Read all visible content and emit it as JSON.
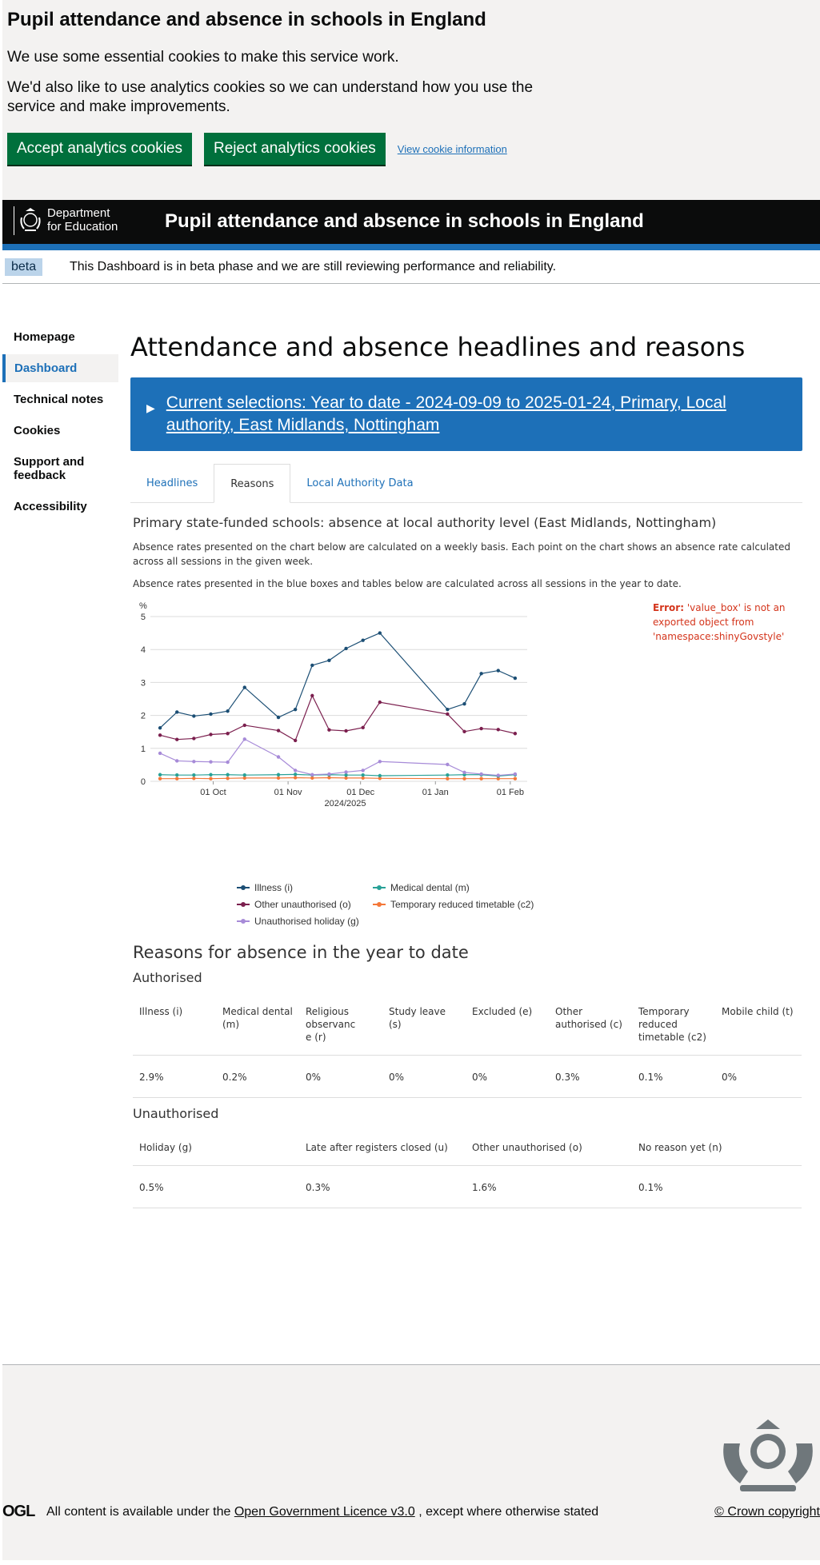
{
  "cookie": {
    "title": "Pupil attendance and absence in schools in England",
    "p1": "We use some essential cookies to make this service work.",
    "p2": "We'd also like to use analytics cookies so we can understand how you use the service and make improvements.",
    "accept": "Accept analytics cookies",
    "reject": "Reject analytics cookies",
    "view": "View cookie information"
  },
  "header": {
    "org_line1": "Department",
    "org_line2": "for Education",
    "title": "Pupil attendance and absence in schools in England"
  },
  "beta": {
    "tag": "beta",
    "text": "This Dashboard is in beta phase and we are still reviewing performance and reliability."
  },
  "sidebar": {
    "items": [
      {
        "label": "Homepage"
      },
      {
        "label": "Dashboard"
      },
      {
        "label": "Technical notes"
      },
      {
        "label": "Cookies"
      },
      {
        "label": "Support and feedback"
      },
      {
        "label": "Accessibility"
      }
    ],
    "active": "Dashboard"
  },
  "main": {
    "title": "Attendance and absence headlines and reasons",
    "selections": "Current selections: Year to date - 2024-09-09 to 2025-01-24, Primary, Local authority, East Midlands, Nottingham",
    "tabs": [
      {
        "label": "Headlines"
      },
      {
        "label": "Reasons"
      },
      {
        "label": "Local Authority Data"
      }
    ],
    "active_tab": "Reasons"
  },
  "reasons": {
    "heading": "Primary state-funded schools: absence at local authority level (East Midlands, Nottingham)",
    "note1": "Absence rates presented on the chart below are calculated on a weekly basis. Each point on the chart shows an absence rate calculated across all sessions in the given week.",
    "note2": "Absence rates presented in the blue boxes and tables below are calculated across all sessions in the year to date.",
    "error_label": "Error:",
    "error_text": "'value_box' is not an exported object from 'namespace:shinyGovstyle'"
  },
  "chart_data": {
    "type": "line",
    "ylabel": "%",
    "xlabel": "2024/2025",
    "ylim": [
      0,
      5
    ],
    "yticks": [
      "0",
      "1",
      "2",
      "3",
      "4",
      "5"
    ],
    "xticks": [
      {
        "label": "01 Oct",
        "date": "2024-10-01"
      },
      {
        "label": "01 Nov",
        "date": "2024-11-01"
      },
      {
        "label": "01 Dec",
        "date": "2024-12-01"
      },
      {
        "label": "01 Jan",
        "date": "2025-01-01"
      },
      {
        "label": "01 Feb",
        "date": "2025-02-01"
      }
    ],
    "xrange": [
      "2024-09-05",
      "2025-02-08"
    ],
    "x": [
      "2024-09-09",
      "2024-09-16",
      "2024-09-23",
      "2024-09-30",
      "2024-10-07",
      "2024-10-14",
      "2024-10-28",
      "2024-11-04",
      "2024-11-11",
      "2024-11-18",
      "2024-11-25",
      "2024-12-02",
      "2024-12-09",
      "2024-12-16",
      "2025-01-06",
      "2025-01-13",
      "2025-01-20",
      "2025-01-27",
      "2025-02-03"
    ],
    "series": [
      {
        "name": "Illness (i)",
        "color": "#1b4e74",
        "values": [
          1.62,
          2.1,
          1.98,
          2.04,
          2.13,
          2.85,
          1.94,
          2.18,
          3.52,
          3.67,
          4.03,
          4.28,
          4.5,
          null,
          2.18,
          2.35,
          3.27,
          3.36,
          3.13
        ]
      },
      {
        "name": "Other unauthorised (o)",
        "color": "#7b1f4e",
        "values": [
          1.4,
          1.27,
          1.3,
          1.42,
          1.45,
          1.7,
          1.54,
          1.24,
          2.6,
          1.56,
          1.53,
          1.63,
          2.4,
          null,
          2.04,
          1.51,
          1.6,
          1.57,
          1.45
        ]
      },
      {
        "name": "Unauthorised holiday (g)",
        "color": "#a78bd8",
        "values": [
          0.85,
          0.62,
          0.6,
          0.59,
          0.58,
          1.28,
          0.74,
          0.33,
          0.2,
          0.22,
          0.28,
          0.33,
          0.6,
          null,
          0.51,
          0.27,
          0.22,
          0.18,
          0.22
        ]
      },
      {
        "name": "Medical dental (m)",
        "color": "#28a197",
        "values": [
          0.2,
          0.19,
          0.19,
          0.2,
          0.2,
          0.19,
          0.2,
          0.21,
          0.19,
          0.2,
          0.19,
          0.19,
          0.17,
          null,
          0.19,
          0.2,
          0.2,
          0.16,
          0.2
        ]
      },
      {
        "name": "Temporary reduced timetable (c2)",
        "color": "#f47738",
        "values": [
          0.08,
          0.08,
          0.09,
          0.08,
          0.09,
          0.1,
          0.1,
          0.11,
          0.1,
          0.11,
          0.1,
          0.1,
          0.09,
          null,
          0.08,
          0.08,
          0.08,
          0.08,
          0.08
        ]
      }
    ],
    "legend": "bottom"
  },
  "tables": {
    "title": "Reasons for absence in the year to date",
    "authorised_title": "Authorised",
    "authorised_headers": [
      "Illness (i)",
      "Medical dental (m)",
      "Religious observance (r)",
      "Study leave (s)",
      "Excluded (e)",
      "Other authorised (c)",
      "Temporary reduced timetable (c2)",
      "Mobile child (t)"
    ],
    "authorised_values": [
      "2.9%",
      "0.2%",
      "0%",
      "0%",
      "0%",
      "0.3%",
      "0.1%",
      "0%"
    ],
    "unauthorised_title": "Unauthorised",
    "unauthorised_headers": [
      "Holiday (g)",
      "Late after registers closed (u)",
      "Other unauthorised (o)",
      "No reason yet (n)"
    ],
    "unauthorised_values": [
      "0.5%",
      "0.3%",
      "1.6%",
      "0.1%"
    ]
  },
  "footer": {
    "ogl": "OGL",
    "lic_pre": "All content is available under the",
    "lic_link": "Open Government Licence v3.0",
    "lic_post": ", except where otherwise stated",
    "crown": "© Crown copyright"
  }
}
